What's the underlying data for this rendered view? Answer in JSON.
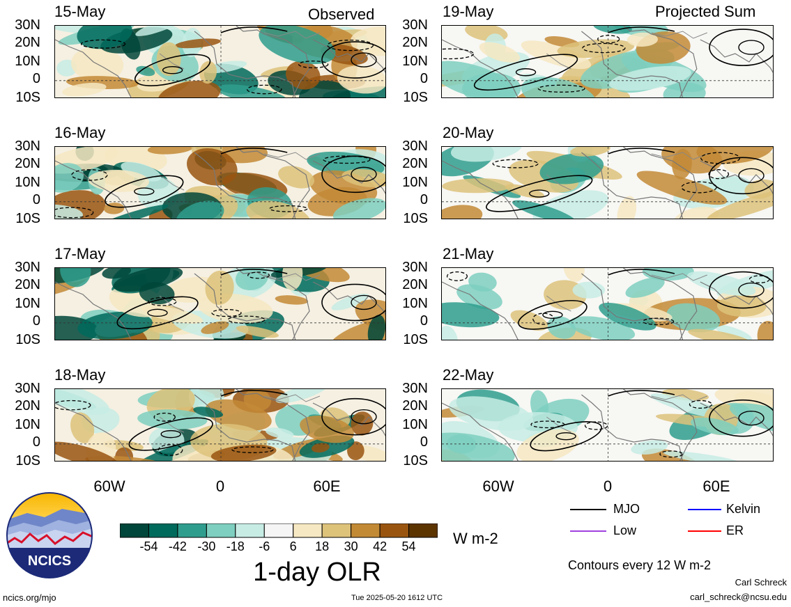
{
  "observed_label": "Observed",
  "projected_label": "Projected Sum",
  "lat_labels": [
    "30N",
    "20N",
    "10N",
    "0",
    "10S"
  ],
  "lon_labels": [
    "60W",
    "0",
    "60E"
  ],
  "panels_left": [
    {
      "date": "15-May"
    },
    {
      "date": "16-May"
    },
    {
      "date": "17-May"
    },
    {
      "date": "18-May"
    }
  ],
  "panels_right": [
    {
      "date": "19-May"
    },
    {
      "date": "20-May"
    },
    {
      "date": "21-May"
    },
    {
      "date": "22-May"
    }
  ],
  "colorbar": {
    "colors": [
      "#00463a",
      "#006a5c",
      "#2f9d8d",
      "#7ecfbf",
      "#c7ece4",
      "#f5f5f5",
      "#f6e8c2",
      "#ddc27a",
      "#c38a36",
      "#995510",
      "#5c3400"
    ],
    "labels": [
      "-54",
      "-42",
      "-30",
      "-18",
      "-6",
      "6",
      "18",
      "30",
      "42",
      "54"
    ],
    "units": "W m-2",
    "title": "1-day OLR"
  },
  "legend": {
    "items": [
      {
        "name": "MJO",
        "color": "#000000"
      },
      {
        "name": "Kelvin",
        "color": "#0000ff"
      },
      {
        "name": "Low",
        "color": "#a040e0"
      },
      {
        "name": "ER",
        "color": "#ff0000"
      }
    ],
    "contours_note": "Contours every 12 W m-2"
  },
  "logo_text": "NCICS",
  "footer": {
    "url": "ncics.org/mjo",
    "timestamp": "Tue 2025-05-20 1612 UTC",
    "author": "Carl Schreck",
    "email": "carl_schreck@ncsu.edu"
  }
}
